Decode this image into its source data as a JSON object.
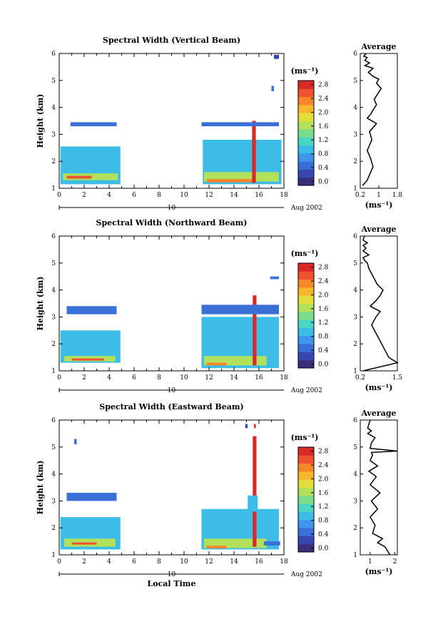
{
  "chart_data": [
    {
      "type": "heatmap",
      "title": "Spectral Width (Vertical Beam)",
      "xlabel": "",
      "ylabel": "Height (km)",
      "xlim": [
        0,
        18
      ],
      "ylim": [
        1,
        6
      ],
      "xticks": [
        "0",
        "2",
        "4",
        "6",
        "8",
        "10",
        "12",
        "14",
        "16",
        "18"
      ],
      "yticks": [
        "1",
        "2",
        "3",
        "4",
        "5",
        "6"
      ],
      "date_label": "10",
      "date_suffix": "Aug 2002",
      "colorbar": {
        "unit": "(ms⁻¹)",
        "ticks": [
          "0.0",
          "0.4",
          "0.8",
          "1.2",
          "1.6",
          "2.0",
          "2.4",
          "2.8"
        ]
      },
      "blocks": [
        {
          "x0": 0.1,
          "x1": 4.9,
          "y0": 1.15,
          "y1": 2.55,
          "level": 0.9
        },
        {
          "x0": 0.3,
          "x1": 4.7,
          "y0": 1.3,
          "y1": 1.55,
          "level": 1.6
        },
        {
          "x0": 0.6,
          "x1": 2.6,
          "y0": 1.36,
          "y1": 1.46,
          "level": 2.6
        },
        {
          "x0": 0.9,
          "x1": 4.6,
          "y0": 3.3,
          "y1": 3.45,
          "level": 0.5
        },
        {
          "x0": 11.5,
          "x1": 17.8,
          "y0": 1.15,
          "y1": 2.8,
          "level": 0.9
        },
        {
          "x0": 11.6,
          "x1": 17.6,
          "y0": 1.25,
          "y1": 1.6,
          "level": 1.6
        },
        {
          "x0": 11.8,
          "x1": 15.6,
          "y0": 1.22,
          "y1": 1.34,
          "level": 2.4
        },
        {
          "x0": 15.45,
          "x1": 15.75,
          "y0": 1.2,
          "y1": 3.5,
          "level": 2.9
        },
        {
          "x0": 11.4,
          "x1": 17.6,
          "y0": 3.3,
          "y1": 3.45,
          "level": 0.5
        },
        {
          "x0": 17.2,
          "x1": 17.6,
          "y0": 5.8,
          "y1": 5.95,
          "level": 0.3
        },
        {
          "x0": 17.0,
          "x1": 17.2,
          "y0": 4.6,
          "y1": 4.8,
          "level": 0.5
        }
      ],
      "average": {
        "xticks": [
          "0.2",
          "1",
          "1.8"
        ],
        "xlim": [
          0.2,
          1.8
        ],
        "xlabel": "(ms⁻¹)",
        "title": "Average",
        "x": [
          0.3,
          0.5,
          0.6,
          0.75,
          0.65,
          0.5,
          0.7,
          0.6,
          0.9,
          0.5,
          0.65,
          0.75,
          0.9,
          0.8,
          0.95,
          1.1,
          0.9,
          1.0,
          0.75,
          0.55,
          0.75,
          0.4,
          0.6,
          0.4,
          0.5,
          0.35,
          0.45
        ],
        "y": [
          1.1,
          1.3,
          1.5,
          1.8,
          2.1,
          2.4,
          2.8,
          3.1,
          3.4,
          3.6,
          3.75,
          3.9,
          4.1,
          4.3,
          4.5,
          4.7,
          4.9,
          5.05,
          5.15,
          5.3,
          5.45,
          5.55,
          5.65,
          5.75,
          5.85,
          5.9,
          6.0
        ]
      }
    },
    {
      "type": "heatmap",
      "title": "Spectral Width (Northward Beam)",
      "xlabel": "",
      "ylabel": "Height (km)",
      "xlim": [
        0,
        18
      ],
      "ylim": [
        1,
        6
      ],
      "xticks": [
        "0",
        "2",
        "4",
        "6",
        "8",
        "10",
        "12",
        "14",
        "16",
        "18"
      ],
      "yticks": [
        "1",
        "2",
        "3",
        "4",
        "5",
        "6"
      ],
      "date_label": "10",
      "date_suffix": "Aug 2002",
      "colorbar": {
        "unit": "(ms⁻¹)",
        "ticks": [
          "0.0",
          "0.4",
          "0.8",
          "1.2",
          "1.6",
          "2.0",
          "2.4",
          "2.8"
        ]
      },
      "blocks": [
        {
          "x0": 0.1,
          "x1": 4.9,
          "y0": 1.3,
          "y1": 2.5,
          "level": 0.9
        },
        {
          "x0": 0.4,
          "x1": 4.5,
          "y0": 1.35,
          "y1": 1.55,
          "level": 1.6
        },
        {
          "x0": 1.0,
          "x1": 3.6,
          "y0": 1.38,
          "y1": 1.46,
          "level": 2.6
        },
        {
          "x0": 0.6,
          "x1": 4.6,
          "y0": 3.1,
          "y1": 3.4,
          "level": 0.5
        },
        {
          "x0": 11.4,
          "x1": 17.6,
          "y0": 1.1,
          "y1": 3.0,
          "level": 0.9
        },
        {
          "x0": 11.6,
          "x1": 16.6,
          "y0": 1.2,
          "y1": 1.55,
          "level": 1.6
        },
        {
          "x0": 11.8,
          "x1": 13.4,
          "y0": 1.2,
          "y1": 1.3,
          "level": 2.4
        },
        {
          "x0": 15.5,
          "x1": 15.8,
          "y0": 1.2,
          "y1": 3.8,
          "level": 2.9
        },
        {
          "x0": 11.4,
          "x1": 17.6,
          "y0": 3.1,
          "y1": 3.45,
          "level": 0.6
        },
        {
          "x0": 16.9,
          "x1": 17.6,
          "y0": 4.4,
          "y1": 4.5,
          "level": 0.4
        }
      ],
      "average": {
        "xticks": [
          "0.2",
          "1.5"
        ],
        "xlim": [
          0.2,
          1.5
        ],
        "xlabel": "(ms⁻¹)",
        "title": "Average",
        "x": [
          0.3,
          1.5,
          1.2,
          1.05,
          0.9,
          0.75,
          0.6,
          0.75,
          0.9,
          0.55,
          0.75,
          0.9,
          1.0,
          0.8,
          0.7,
          0.6,
          0.5,
          0.45,
          0.35,
          0.3,
          0.5,
          0.3,
          0.4,
          0.3,
          0.45,
          0.3,
          0.35
        ],
        "y": [
          1.0,
          1.3,
          1.5,
          1.8,
          2.1,
          2.4,
          2.7,
          3.0,
          3.2,
          3.4,
          3.6,
          3.8,
          4.0,
          4.2,
          4.4,
          4.6,
          4.8,
          5.0,
          5.1,
          5.2,
          5.3,
          5.45,
          5.55,
          5.65,
          5.75,
          5.85,
          6.0
        ]
      }
    },
    {
      "type": "heatmap",
      "title": "Spectral Width (Eastward Beam)",
      "xlabel": "Local Time",
      "ylabel": "Height (km)",
      "xlim": [
        0,
        18
      ],
      "ylim": [
        1,
        6
      ],
      "xticks": [
        "0",
        "2",
        "4",
        "6",
        "8",
        "10",
        "12",
        "14",
        "16",
        "18"
      ],
      "yticks": [
        "1",
        "2",
        "3",
        "4",
        "5",
        "6"
      ],
      "date_label": "10",
      "date_suffix": "Aug 2002",
      "colorbar": {
        "unit": "(ms⁻¹)",
        "ticks": [
          "0.0",
          "0.4",
          "0.8",
          "1.2",
          "1.6",
          "2.0",
          "2.4",
          "2.8"
        ]
      },
      "blocks": [
        {
          "x0": 0.1,
          "x1": 4.9,
          "y0": 1.2,
          "y1": 2.4,
          "level": 0.9
        },
        {
          "x0": 0.4,
          "x1": 4.5,
          "y0": 1.3,
          "y1": 1.6,
          "level": 1.6
        },
        {
          "x0": 1.0,
          "x1": 3.0,
          "y0": 1.38,
          "y1": 1.46,
          "level": 2.6
        },
        {
          "x0": 0.6,
          "x1": 4.6,
          "y0": 3.0,
          "y1": 3.3,
          "level": 0.5
        },
        {
          "x0": 1.2,
          "x1": 1.4,
          "y0": 5.1,
          "y1": 5.3,
          "level": 0.4
        },
        {
          "x0": 11.4,
          "x1": 17.6,
          "y0": 1.2,
          "y1": 2.7,
          "level": 0.9
        },
        {
          "x0": 11.6,
          "x1": 16.6,
          "y0": 1.25,
          "y1": 1.6,
          "level": 1.6
        },
        {
          "x0": 11.8,
          "x1": 13.4,
          "y0": 1.24,
          "y1": 1.34,
          "level": 2.4
        },
        {
          "x0": 15.5,
          "x1": 15.8,
          "y0": 1.3,
          "y1": 5.4,
          "level": 2.9
        },
        {
          "x0": 15.1,
          "x1": 15.9,
          "y0": 2.6,
          "y1": 3.2,
          "level": 1.0
        },
        {
          "x0": 16.4,
          "x1": 17.7,
          "y0": 1.35,
          "y1": 1.5,
          "level": 0.4
        },
        {
          "x0": 15.6,
          "x1": 15.75,
          "y0": 5.7,
          "y1": 5.85,
          "level": 2.9
        },
        {
          "x0": 14.9,
          "x1": 15.1,
          "y0": 5.7,
          "y1": 5.85,
          "level": 0.3
        }
      ],
      "average": {
        "xticks": [
          "1",
          "2"
        ],
        "xlim": [
          0.6,
          2.1
        ],
        "xlabel": "(ms⁻¹)",
        "title": "Average",
        "x": [
          1.8,
          1.6,
          1.3,
          1.5,
          1.1,
          1.2,
          1.0,
          1.3,
          1.05,
          1.4,
          1.0,
          1.25,
          0.95,
          1.3,
          1.0,
          1.1,
          1.05,
          2.1,
          1.0,
          1.05,
          1.2,
          0.9,
          1.05,
          0.9,
          1.0
        ],
        "y": [
          1.0,
          1.3,
          1.45,
          1.6,
          1.8,
          2.1,
          2.4,
          2.7,
          3.0,
          3.3,
          3.6,
          3.9,
          4.1,
          4.3,
          4.5,
          4.7,
          4.8,
          4.85,
          4.95,
          5.15,
          5.35,
          5.5,
          5.6,
          5.7,
          6.0
        ]
      }
    }
  ]
}
